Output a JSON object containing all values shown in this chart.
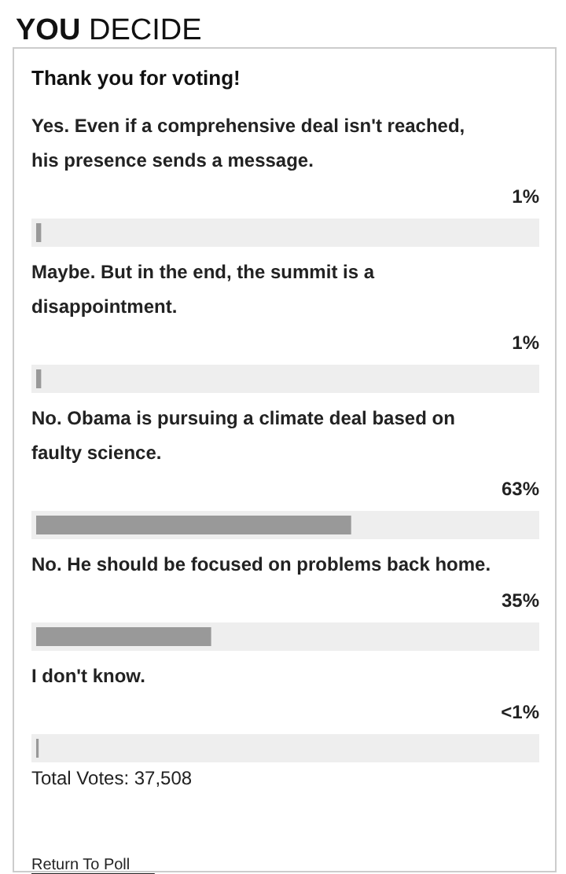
{
  "chart_data": {
    "type": "bar",
    "orientation": "horizontal",
    "title": "YOU DECIDE",
    "subtitle": "Thank you for voting!",
    "categories": [
      "Yes. Even if a comprehensive deal isn't reached, his presence sends a message.",
      "Maybe. But in the end, the summit is a disappointment.",
      "No. Obama is pursuing a climate deal based on faulty science.",
      "No. He should be focused on problems back home.",
      "I don't know."
    ],
    "values": [
      1,
      1,
      63,
      35,
      0.5
    ],
    "value_labels": [
      "1%",
      "1%",
      "63%",
      "35%",
      "<1%"
    ],
    "color": "#999999",
    "xlim": [
      0,
      100
    ],
    "annotations": [
      "Total Votes: 37,508",
      "Return To Poll"
    ]
  }
}
